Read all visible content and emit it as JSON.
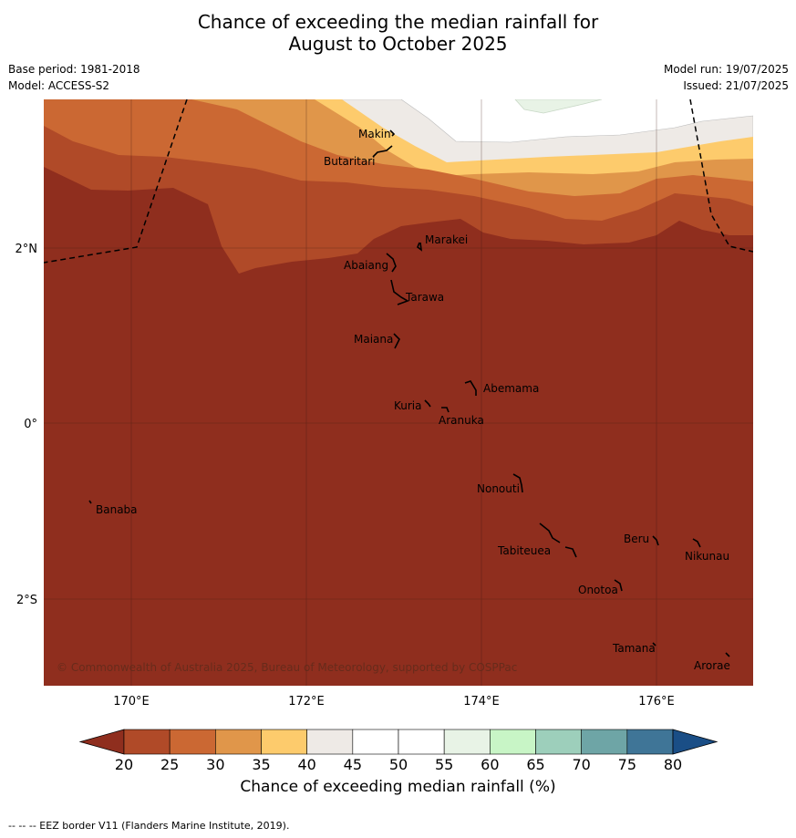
{
  "title_line1": "Chance of exceeding the median rainfall for",
  "title_line2": "August to October 2025",
  "base_period": "Base period: 1981-2018",
  "model": "Model: ACCESS-S2",
  "model_run": "Model run: 19/07/2025",
  "issued": "Issued: 21/07/2025",
  "lon_ticks": [
    "170°E",
    "172°E",
    "174°E",
    "176°E"
  ],
  "lat_ticks": [
    "2°N",
    "0°",
    "2°S"
  ],
  "places": [
    "Makin",
    "Butaritari",
    "Marakei",
    "Abaiang",
    "Tarawa",
    "Maiana",
    "Abemama",
    "Kuria",
    "Aranuka",
    "Nonouti",
    "Banaba",
    "Beru",
    "Nikunau",
    "Tabiteuea",
    "Onotoa",
    "Tamana",
    "Arorae"
  ],
  "copyright": "© Commonwealth of Australia 2025, Bureau of Meteorology, supported by COSPPac",
  "colorbar": {
    "ticks": [
      "20",
      "25",
      "30",
      "35",
      "40",
      "45",
      "50",
      "55",
      "60",
      "65",
      "70",
      "75",
      "80"
    ],
    "colors": [
      "#8f2e1e",
      "#b04a28",
      "#cb6833",
      "#e0964a",
      "#fdcb6c",
      "#eeeae6",
      "#ffffff",
      "#ffffff",
      "#e8f3e6",
      "#c8f5c6",
      "#9dcfbb",
      "#6ea5a6",
      "#3f7597",
      "#1a4e86"
    ],
    "label": "Chance of exceeding median rainfall (%)"
  },
  "footer": "--  --  -- EEZ border V11 (Flanders Marine Institute, 2019)."
}
